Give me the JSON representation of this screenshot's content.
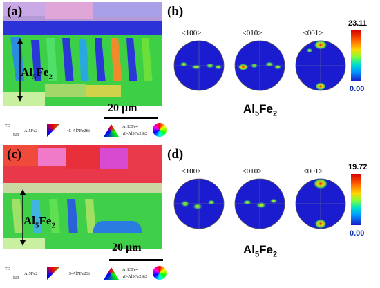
{
  "panels": {
    "a": {
      "tag": "(a)",
      "phase_label": "Al",
      "phase_sub": "5",
      "phase_rest": "Fe",
      "phase_sub2": "2",
      "scale": "20 μm"
    },
    "b": {
      "tag": "(b)",
      "poles": [
        "<100>",
        "<010>",
        "<001>"
      ],
      "max": "23.11",
      "min": "0.00",
      "phase": "Al",
      "phase_sub": "5",
      "phase_rest": "Fe",
      "phase_sub2": "2"
    },
    "c": {
      "tag": "(c)",
      "phase_label": "Al",
      "phase_sub": "5",
      "phase_rest": "Fe",
      "phase_sub2": "2",
      "scale": "20 μm"
    },
    "d": {
      "tag": "(d)",
      "poles": [
        "<100>",
        "<010>",
        "<001>"
      ],
      "max": "19.72",
      "min": "0.00",
      "phase": "Al",
      "phase_sub": "5",
      "phase_rest": "Fe",
      "phase_sub2": "2"
    }
  },
  "legend": {
    "td": "TD",
    "rd": "RD",
    "items": [
      "Al5Fe2",
      "τ5-Al7Fe2Si",
      "Al13Fe4",
      "τ6-Al9Fe2Si2"
    ]
  },
  "colors": {
    "matrix_blue": "#1b1bd0",
    "text": "#000000",
    "min_label": "#0b2fae"
  }
}
